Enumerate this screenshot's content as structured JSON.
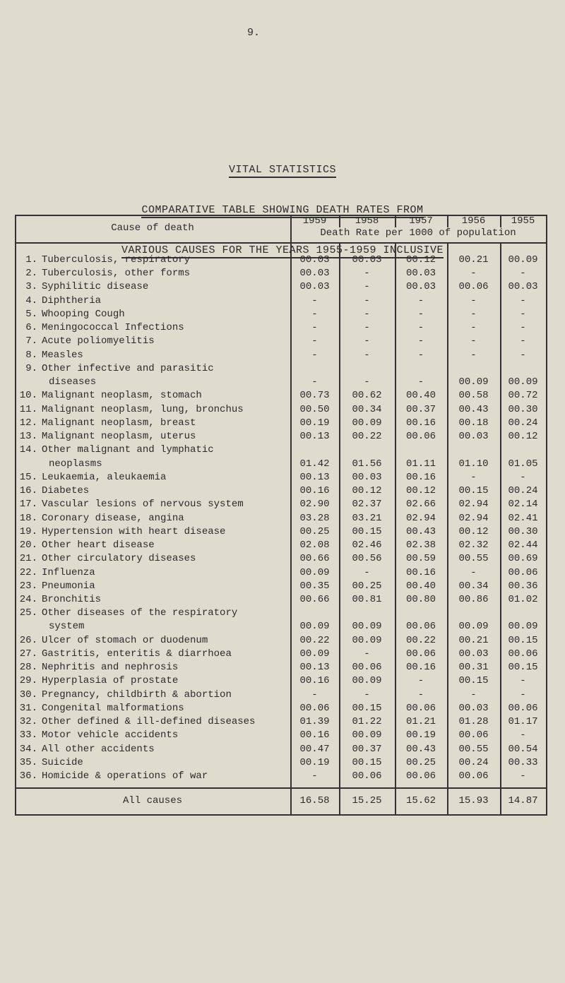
{
  "page_number": "9.",
  "heading": "VITAL STATISTICS",
  "subheading_1": "COMPARATIVE TABLE SHOWING DEATH RATES FROM",
  "subheading_2": "VARIOUS CAUSES FOR THE YEARS 1955-1959 INCLUSIVE",
  "table": {
    "cause_header": "Cause of death",
    "years": [
      "1959",
      "1958",
      "1957",
      "1956",
      "1955"
    ],
    "rate_header": "Death Rate per 1000 of population",
    "rows": [
      {
        "no": "1.",
        "cause": [
          "Tuberculosis, respiratory"
        ],
        "values": [
          "00.03",
          "00.03",
          "00.12",
          "00.21",
          "00.09"
        ]
      },
      {
        "no": "2.",
        "cause": [
          "Tuberculosis, other forms"
        ],
        "values": [
          "00.03",
          "-",
          "00.03",
          "-",
          "-"
        ]
      },
      {
        "no": "3.",
        "cause": [
          "Syphilitic disease"
        ],
        "values": [
          "00.03",
          "-",
          "00.03",
          "00.06",
          "00.03"
        ]
      },
      {
        "no": "4.",
        "cause": [
          "Diphtheria"
        ],
        "values": [
          "-",
          "-",
          "-",
          "-",
          "-"
        ]
      },
      {
        "no": "5.",
        "cause": [
          "Whooping Cough"
        ],
        "values": [
          "-",
          "-",
          "-",
          "-",
          "-"
        ]
      },
      {
        "no": "6.",
        "cause": [
          "Meningococcal Infections"
        ],
        "values": [
          "-",
          "-",
          "-",
          "-",
          "-"
        ]
      },
      {
        "no": "7.",
        "cause": [
          "Acute poliomyelitis"
        ],
        "values": [
          "-",
          "-",
          "-",
          "-",
          "-"
        ]
      },
      {
        "no": "8.",
        "cause": [
          "Measles"
        ],
        "values": [
          "-",
          "-",
          "-",
          "-",
          "-"
        ]
      },
      {
        "no": "9.",
        "cause": [
          "Other infective and parasitic",
          "diseases"
        ],
        "values": [
          "-",
          "-",
          "-",
          "00.09",
          "00.09"
        ]
      },
      {
        "no": "10.",
        "cause": [
          "Malignant neoplasm, stomach"
        ],
        "values": [
          "00.73",
          "00.62",
          "00.40",
          "00.58",
          "00.72"
        ]
      },
      {
        "no": "11.",
        "cause": [
          "Malignant neoplasm, lung, bronchus"
        ],
        "values": [
          "00.50",
          "00.34",
          "00.37",
          "00.43",
          "00.30"
        ]
      },
      {
        "no": "12.",
        "cause": [
          "Malignant neoplasm, breast"
        ],
        "values": [
          "00.19",
          "00.09",
          "00.16",
          "00.18",
          "00.24"
        ]
      },
      {
        "no": "13.",
        "cause": [
          "Malignant neoplasm, uterus"
        ],
        "values": [
          "00.13",
          "00.22",
          "00.06",
          "00.03",
          "00.12"
        ]
      },
      {
        "no": "14.",
        "cause": [
          "Other malignant and lymphatic",
          "neoplasms"
        ],
        "values": [
          "01.42",
          "01.56",
          "01.11",
          "01.10",
          "01.05"
        ]
      },
      {
        "no": "15.",
        "cause": [
          "Leukaemia, aleukaemia"
        ],
        "values": [
          "00.13",
          "00.03",
          "00.16",
          "-",
          "-"
        ]
      },
      {
        "no": "16.",
        "cause": [
          "Diabetes"
        ],
        "values": [
          "00.16",
          "00.12",
          "00.12",
          "00.15",
          "00.24"
        ]
      },
      {
        "no": "17.",
        "cause": [
          "Vascular lesions of nervous system"
        ],
        "values": [
          "02.90",
          "02.37",
          "02.66",
          "02.94",
          "02.14"
        ]
      },
      {
        "no": "18.",
        "cause": [
          "Coronary disease, angina"
        ],
        "values": [
          "03.28",
          "03.21",
          "02.94",
          "02.94",
          "02.41"
        ]
      },
      {
        "no": "19.",
        "cause": [
          "Hypertension with heart disease"
        ],
        "values": [
          "00.25",
          "00.15",
          "00.43",
          "00.12",
          "00.30"
        ]
      },
      {
        "no": "20.",
        "cause": [
          "Other heart disease"
        ],
        "values": [
          "02.08",
          "02.46",
          "02.38",
          "02.32",
          "02.44"
        ]
      },
      {
        "no": "21.",
        "cause": [
          "Other circulatory diseases"
        ],
        "values": [
          "00.66",
          "00.56",
          "00.59",
          "00.55",
          "00.69"
        ]
      },
      {
        "no": "22.",
        "cause": [
          "Influenza"
        ],
        "values": [
          "00.09",
          "-",
          "00.16",
          "-",
          "00.06"
        ]
      },
      {
        "no": "23.",
        "cause": [
          "Pneumonia"
        ],
        "values": [
          "00.35",
          "00.25",
          "00.40",
          "00.34",
          "00.36"
        ]
      },
      {
        "no": "24.",
        "cause": [
          "Bronchitis"
        ],
        "values": [
          "00.66",
          "00.81",
          "00.80",
          "00.86",
          "01.02"
        ]
      },
      {
        "no": "25.",
        "cause": [
          "Other diseases of the respiratory",
          "system"
        ],
        "values": [
          "00.09",
          "00.09",
          "00.06",
          "00.09",
          "00.09"
        ]
      },
      {
        "no": "26.",
        "cause": [
          "Ulcer of stomach or duodenum"
        ],
        "values": [
          "00.22",
          "00.09",
          "00.22",
          "00.21",
          "00.15"
        ]
      },
      {
        "no": "27.",
        "cause": [
          "Gastritis, enteritis & diarrhoea"
        ],
        "values": [
          "00.09",
          "-",
          "00.06",
          "00.03",
          "00.06"
        ]
      },
      {
        "no": "28.",
        "cause": [
          "Nephritis and nephrosis"
        ],
        "values": [
          "00.13",
          "00.06",
          "00.16",
          "00.31",
          "00.15"
        ]
      },
      {
        "no": "29.",
        "cause": [
          "Hyperplasia of prostate"
        ],
        "values": [
          "00.16",
          "00.09",
          "-",
          "00.15",
          "-"
        ]
      },
      {
        "no": "30.",
        "cause": [
          "Pregnancy, childbirth & abortion"
        ],
        "values": [
          "-",
          "-",
          "-",
          "-",
          "-"
        ]
      },
      {
        "no": "31.",
        "cause": [
          "Congenital malformations"
        ],
        "values": [
          "00.06",
          "00.15",
          "00.06",
          "00.03",
          "00.06"
        ]
      },
      {
        "no": "32.",
        "cause": [
          "Other defined & ill-defined diseases"
        ],
        "values": [
          "01.39",
          "01.22",
          "01.21",
          "01.28",
          "01.17"
        ]
      },
      {
        "no": "33.",
        "cause": [
          "Motor vehicle accidents"
        ],
        "values": [
          "00.16",
          "00.09",
          "00.19",
          "00.06",
          "-"
        ]
      },
      {
        "no": "34.",
        "cause": [
          "All other accidents"
        ],
        "values": [
          "00.47",
          "00.37",
          "00.43",
          "00.55",
          "00.54"
        ]
      },
      {
        "no": "35.",
        "cause": [
          "Suicide"
        ],
        "values": [
          "00.19",
          "00.15",
          "00.25",
          "00.24",
          "00.33"
        ]
      },
      {
        "no": "36.",
        "cause": [
          "Homicide & operations of war"
        ],
        "values": [
          "-",
          "00.06",
          "00.06",
          "00.06",
          "-"
        ]
      }
    ],
    "total": {
      "label": "All causes",
      "values": [
        "16.58",
        "15.25",
        "15.62",
        "15.93",
        "14.87"
      ]
    }
  }
}
